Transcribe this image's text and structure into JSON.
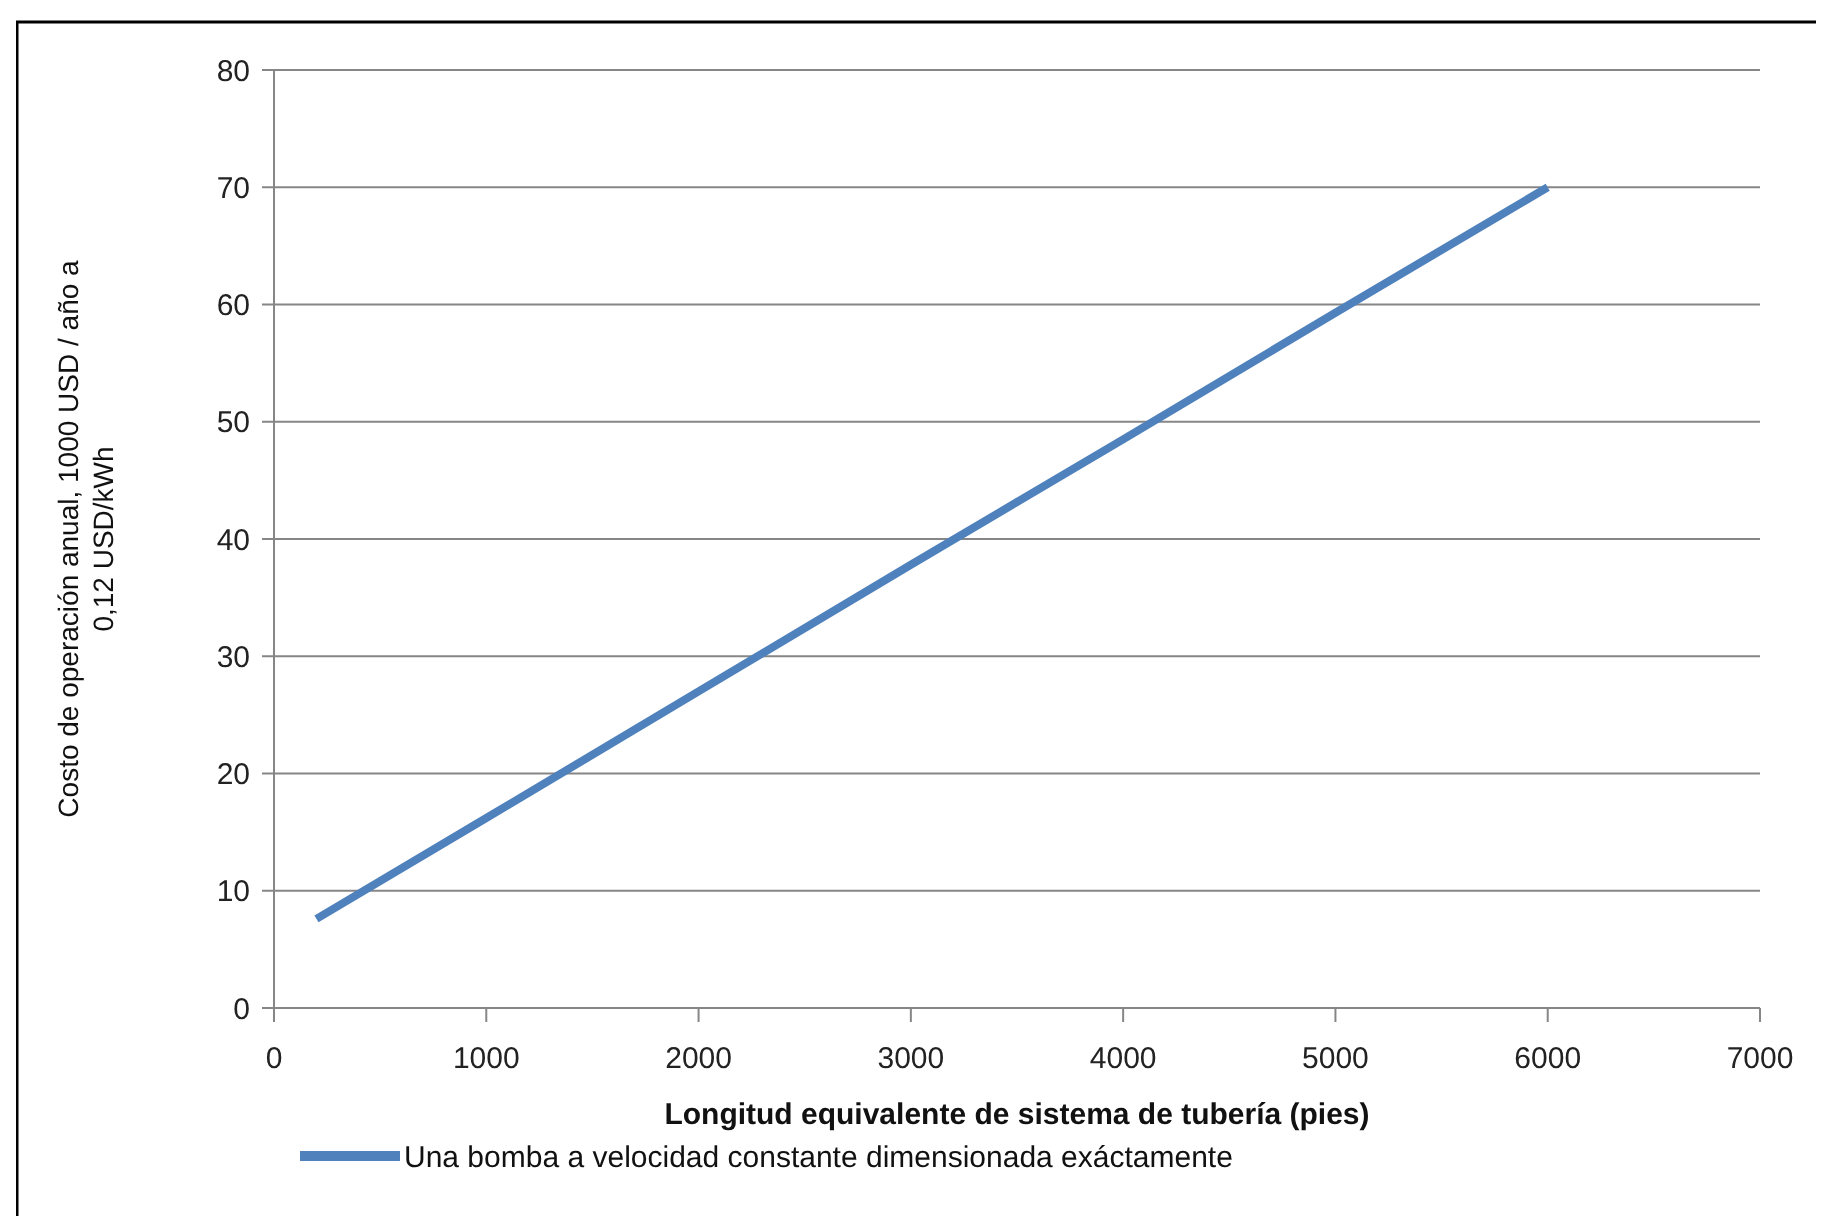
{
  "chart_data": {
    "type": "line",
    "xlabel": "Longitud equivalente de sistema de tubería (pies)",
    "ylabel": "Costo de operación anual, 1000 USD / año a 0,12 USD/kWh",
    "x": [
      200,
      1000,
      2000,
      3000,
      4000,
      5000,
      6000
    ],
    "series": [
      {
        "name": "Una bomba a velocidad constante dimensionada exáctamente",
        "color": "#4f81bd",
        "values": [
          7.6,
          16.2,
          27,
          37.8,
          48.5,
          59.3,
          70
        ]
      }
    ],
    "xlim": [
      0,
      7000
    ],
    "xticks": [
      0,
      1000,
      2000,
      3000,
      4000,
      5000,
      6000,
      7000
    ],
    "ylim": [
      0,
      80
    ],
    "yticks": [
      0,
      10,
      20,
      30,
      40,
      50,
      60,
      70,
      80
    ],
    "grid": "y",
    "legend": "bottom",
    "marker": "none",
    "line_style": "solid"
  }
}
